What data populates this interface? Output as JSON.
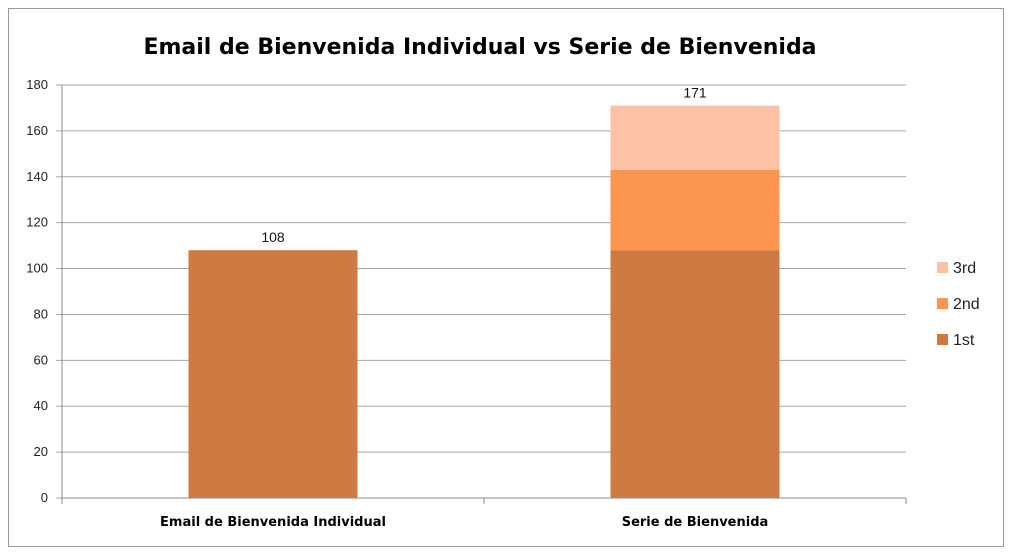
{
  "chart_data": {
    "type": "bar",
    "stacked": true,
    "title": "Email de Bienvenida Individual vs Serie de Bienvenida",
    "xlabel": "",
    "ylabel": "",
    "categories": [
      "Email de Bienvenida Individual",
      "Serie de Bienvenida"
    ],
    "series": [
      {
        "name": "1st",
        "values": [
          108,
          108
        ],
        "color": "#cf7a40"
      },
      {
        "name": "2nd",
        "values": [
          0,
          35
        ],
        "color": "#fc954d"
      },
      {
        "name": "3rd",
        "values": [
          0,
          28
        ],
        "color": "#fdc2a5"
      }
    ],
    "totals": [
      108,
      171
    ],
    "ylim": [
      0,
      180
    ],
    "yticks": [
      0,
      20,
      40,
      60,
      80,
      100,
      120,
      140,
      160,
      180
    ],
    "grid": true,
    "legend_position": "right",
    "gridline_color": "#a6a6a6"
  }
}
